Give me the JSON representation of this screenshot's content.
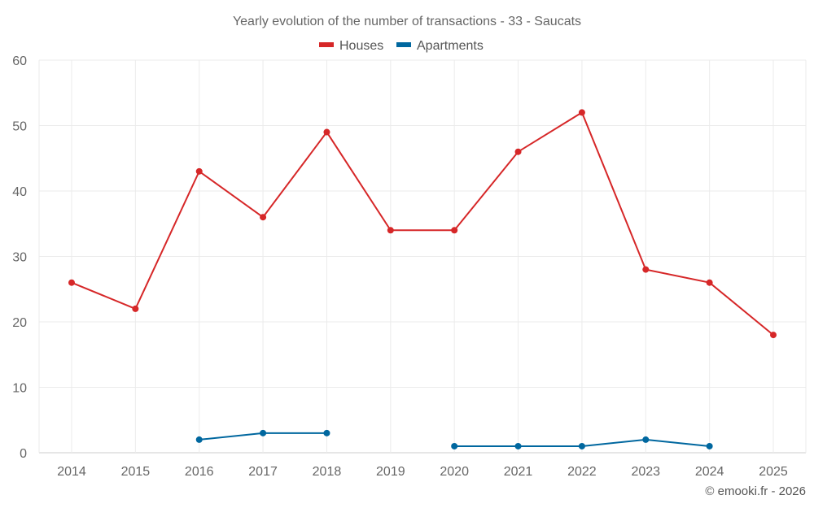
{
  "chart_data": {
    "type": "line",
    "title": "Yearly evolution of the number of transactions - 33 - Saucats",
    "xlabel": "",
    "ylabel": "",
    "categories": [
      "2014",
      "2015",
      "2016",
      "2017",
      "2018",
      "2019",
      "2020",
      "2021",
      "2022",
      "2023",
      "2024",
      "2025"
    ],
    "ylim": [
      0,
      60
    ],
    "yticks": [
      0,
      10,
      20,
      30,
      40,
      50,
      60
    ],
    "grid": true,
    "legend": "top-center",
    "series": [
      {
        "name": "Houses",
        "color": "#d62728",
        "values": [
          26,
          22,
          43,
          36,
          49,
          34,
          34,
          46,
          52,
          28,
          26,
          18
        ]
      },
      {
        "name": "Apartments",
        "color": "#00679f",
        "values": [
          null,
          null,
          2,
          3,
          3,
          null,
          1,
          1,
          1,
          2,
          1,
          null
        ]
      }
    ]
  },
  "credit": "© emooki.fr - 2026"
}
